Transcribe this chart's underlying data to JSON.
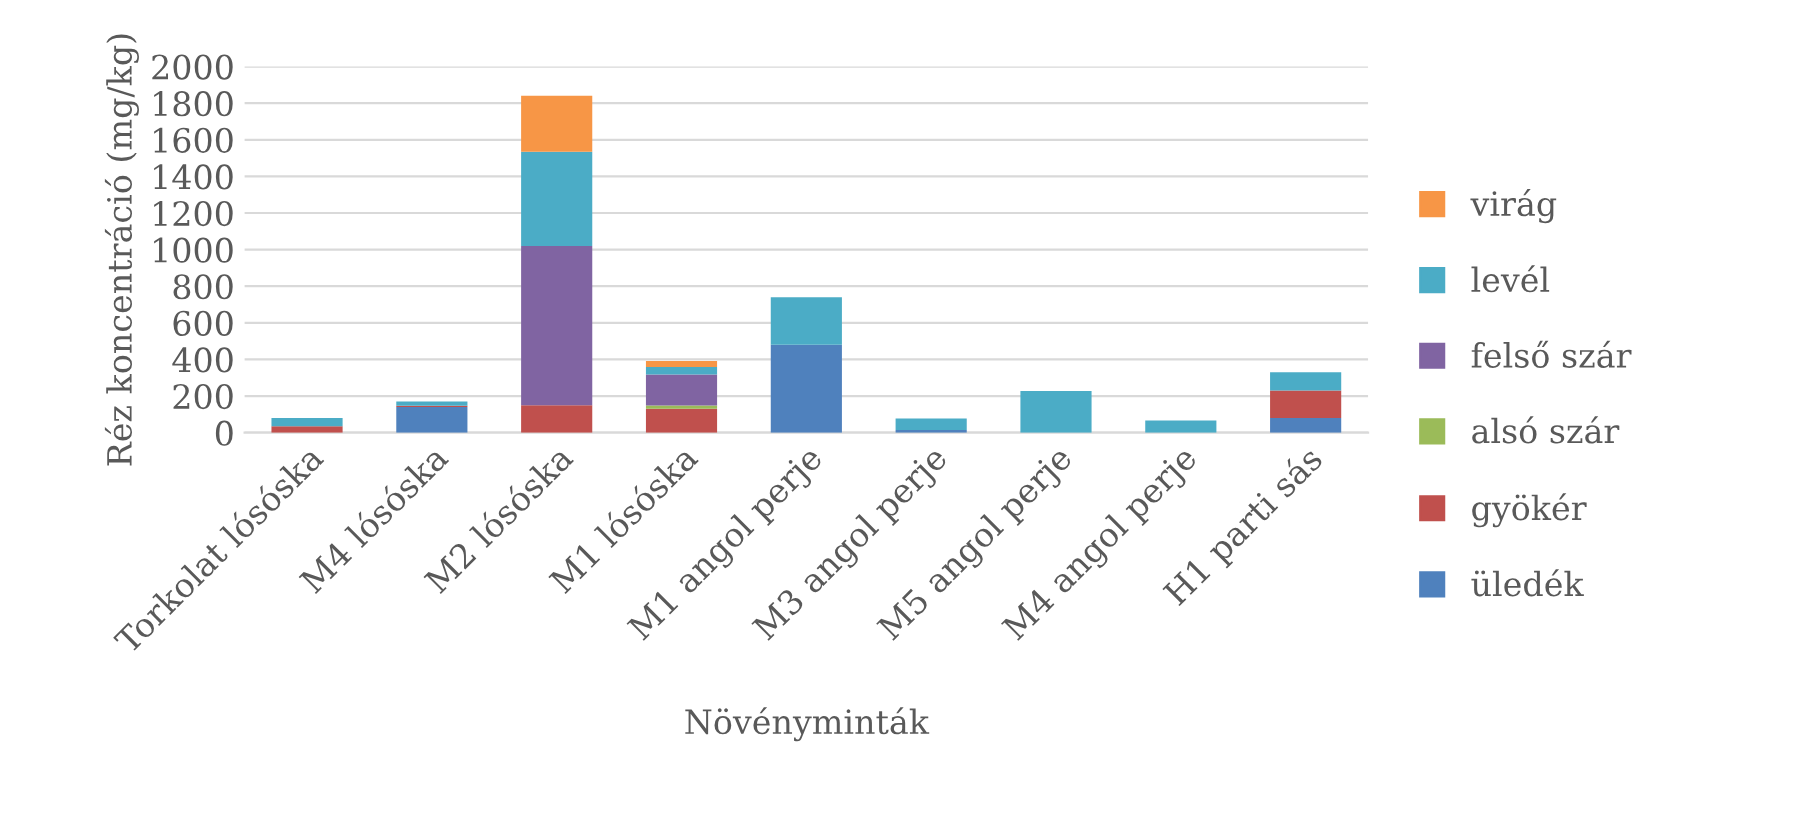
{
  "chart_data": {
    "type": "bar",
    "stacked": true,
    "xlabel": "Növényminták",
    "ylabel": "Réz koncentráció (mg/kg)",
    "categories": [
      "Torkolat lósóska",
      "M4 lósóska",
      "M2 lósóska",
      "M1 lósóska",
      "M1 angol perje",
      "M3 angol perje",
      "M5 angol perje",
      "M4 angol perje",
      "H1 parti sás"
    ],
    "series": [
      {
        "name": "üledék",
        "color": "#4f81bd",
        "values": [
          0,
          140,
          0,
          0,
          480,
          15,
          0,
          0,
          80
        ]
      },
      {
        "name": "gyökér",
        "color": "#c0504d",
        "values": [
          35,
          7,
          150,
          130,
          0,
          0,
          0,
          0,
          150
        ]
      },
      {
        "name": "alsó szár",
        "color": "#9bbb59",
        "values": [
          0,
          0,
          0,
          18,
          0,
          0,
          0,
          0,
          0
        ]
      },
      {
        "name": "felső szár",
        "color": "#8064a2",
        "values": [
          0,
          0,
          870,
          170,
          0,
          0,
          0,
          0,
          0
        ]
      },
      {
        "name": "levél",
        "color": "#4bacc6",
        "values": [
          45,
          23,
          515,
          40,
          260,
          62,
          228,
          66,
          100
        ]
      },
      {
        "name": "virág",
        "color": "#f79646",
        "values": [
          0,
          0,
          305,
          33,
          0,
          0,
          0,
          0,
          0
        ]
      }
    ],
    "ylim": [
      0,
      2000
    ],
    "yticks": [
      0,
      200,
      400,
      600,
      800,
      1000,
      1200,
      1400,
      1600,
      1800,
      2000
    ],
    "grid": "y",
    "legend": "right"
  }
}
